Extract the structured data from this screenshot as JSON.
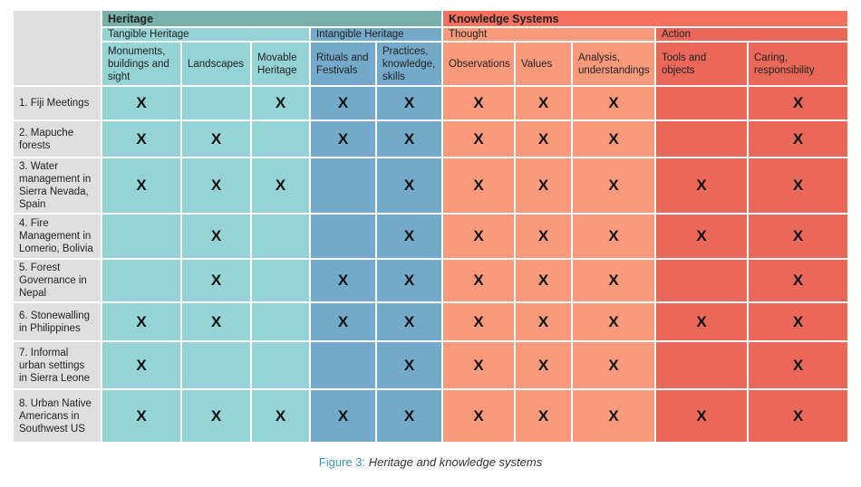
{
  "sections": [
    {
      "label": "Heritage"
    },
    {
      "label": "Knowledge Systems"
    }
  ],
  "subgroups": [
    "Tangible Heritage",
    "Intangible Heritage",
    "Thought",
    "Action"
  ],
  "columns": [
    "Monuments, buildings and sight",
    "Landscapes",
    "Movable Heritage",
    "Rituals and Festivals",
    "Practices, knowledge, skills",
    "Observations",
    "Values",
    "Analysis, understandings",
    "Tools and objects",
    "Caring, responsibility"
  ],
  "mark": "X",
  "rows": [
    {
      "label": "1. Fiji Meetings",
      "marks": [
        1,
        0,
        1,
        1,
        1,
        1,
        1,
        1,
        0,
        1
      ]
    },
    {
      "label": " 2. Mapuche forests",
      "marks": [
        1,
        1,
        0,
        1,
        1,
        1,
        1,
        1,
        0,
        1
      ]
    },
    {
      "label": "3. Water management in Sierra Nevada, Spain",
      "marks": [
        1,
        1,
        1,
        0,
        1,
        1,
        1,
        1,
        1,
        1
      ]
    },
    {
      "label": "4. Fire Management in Lomerio, Bolivia",
      "marks": [
        0,
        1,
        0,
        0,
        1,
        1,
        1,
        1,
        1,
        1
      ]
    },
    {
      "label": "5. Forest Governance in Nepal",
      "marks": [
        0,
        1,
        0,
        1,
        1,
        1,
        1,
        1,
        0,
        1
      ]
    },
    {
      "label": "6. Stonewalling in Philippines",
      "marks": [
        1,
        1,
        0,
        1,
        1,
        1,
        1,
        1,
        1,
        1
      ]
    },
    {
      "label": "7. Informal urban settings in Sierra Leone",
      "marks": [
        1,
        0,
        0,
        0,
        1,
        1,
        1,
        1,
        0,
        1
      ]
    },
    {
      "label": "8. Urban Native Americans in Southwest US",
      "marks": [
        1,
        1,
        1,
        1,
        1,
        1,
        1,
        1,
        1,
        1
      ]
    }
  ],
  "caption": {
    "label": "Figure 3:",
    "text": "Heritage and knowledge systems"
  },
  "colors": {
    "tangible": "#96d3d6",
    "intangible": "#74a9c9",
    "thought": "#f99a7c",
    "action": "#ea685a",
    "heritage_header": "#7ab0aa",
    "knowledge_header": "#f4705f",
    "row_label_bg": "#dfdfdf"
  }
}
